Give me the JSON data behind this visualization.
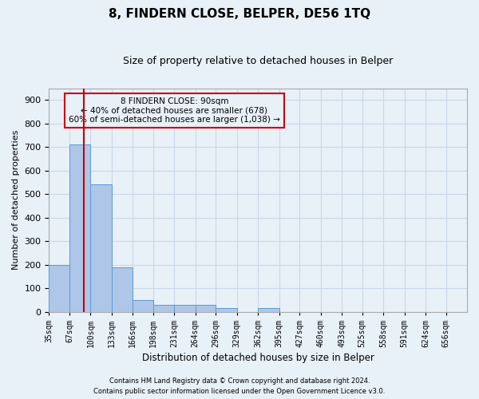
{
  "title": "8, FINDERN CLOSE, BELPER, DE56 1TQ",
  "subtitle": "Size of property relative to detached houses in Belper",
  "xlabel": "Distribution of detached houses by size in Belper",
  "ylabel": "Number of detached properties",
  "footer_line1": "Contains HM Land Registry data © Crown copyright and database right 2024.",
  "footer_line2": "Contains public sector information licensed under the Open Government Licence v3.0.",
  "annotation_line1": "8 FINDERN CLOSE: 90sqm",
  "annotation_line2": "← 40% of detached houses are smaller (678)",
  "annotation_line3": "60% of semi-detached houses are larger (1,038) →",
  "bar_edges": [
    35,
    67,
    100,
    133,
    166,
    198,
    231,
    264,
    296,
    329,
    362,
    395,
    427,
    460,
    493,
    525,
    558,
    591,
    624,
    656,
    689
  ],
  "bar_heights": [
    200,
    710,
    540,
    190,
    50,
    30,
    30,
    30,
    15,
    0,
    15,
    0,
    0,
    0,
    0,
    0,
    0,
    0,
    0,
    0
  ],
  "bar_color": "#aec6e8",
  "bar_edge_color": "#5b9bd5",
  "vline_x": 90,
  "vline_color": "#cc0000",
  "annotation_box_color": "#cc0000",
  "grid_color": "#c8d8e8",
  "bg_color": "#e8f0f8",
  "ylim": [
    0,
    950
  ],
  "yticks": [
    0,
    100,
    200,
    300,
    400,
    500,
    600,
    700,
    800,
    900
  ]
}
